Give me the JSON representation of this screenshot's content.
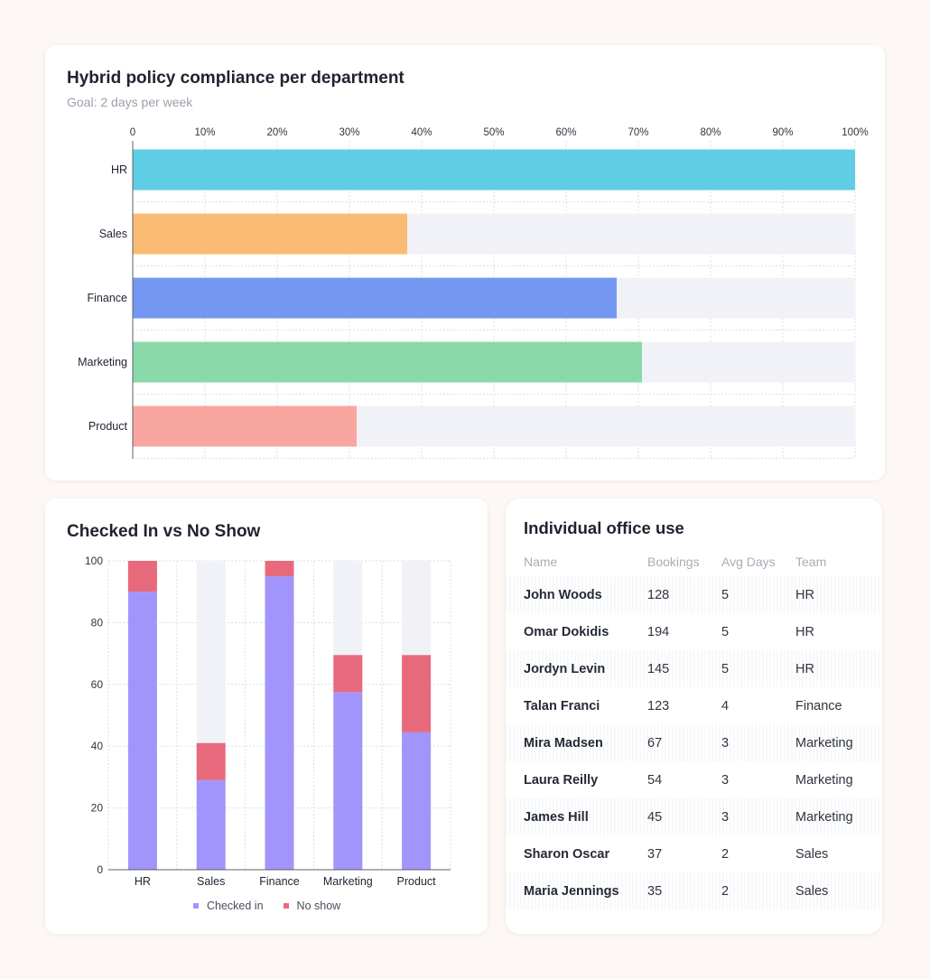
{
  "compliance": {
    "title": "Hybrid policy compliance per department",
    "subtitle": "Goal: 2 days per week"
  },
  "checkin": {
    "title": "Checked In vs No Show"
  },
  "table": {
    "title": "Individual office use",
    "headers": [
      "Name",
      "Bookings",
      "Avg Days",
      "Team"
    ],
    "rows": [
      [
        "John Woods",
        "128",
        "5",
        "HR"
      ],
      [
        "Omar Dokidis",
        "194",
        "5",
        "HR"
      ],
      [
        "Jordyn Levin",
        "145",
        "5",
        "HR"
      ],
      [
        "Talan Franci",
        "123",
        "4",
        "Finance"
      ],
      [
        "Mira Madsen",
        "67",
        "3",
        "Marketing"
      ],
      [
        "Laura Reilly",
        "54",
        "3",
        "Marketing"
      ],
      [
        "James Hill",
        "45",
        "3",
        "Marketing"
      ],
      [
        "Sharon Oscar",
        "37",
        "2",
        "Sales"
      ],
      [
        "Maria Jennings",
        "35",
        "2",
        "Sales"
      ]
    ]
  },
  "chart_data": [
    {
      "type": "bar",
      "orientation": "horizontal",
      "title": "Hybrid policy compliance per department",
      "subtitle": "Goal: 2 days per week",
      "categories": [
        "HR",
        "Sales",
        "Finance",
        "Marketing",
        "Product"
      ],
      "values": [
        100,
        38,
        67,
        70.5,
        31
      ],
      "colors": [
        "#5fcde4",
        "#f9bc72",
        "#7498f1",
        "#8ad9a8",
        "#f9a6a0"
      ],
      "track_color": "#f1f2f7",
      "xlim": [
        0,
        100
      ],
      "ticks": [
        "0",
        "10%",
        "20%",
        "30%",
        "40%",
        "50%",
        "60%",
        "70%",
        "80%",
        "90%",
        "100%"
      ],
      "grid": true
    },
    {
      "type": "bar",
      "stacked": true,
      "title": "Checked In vs No Show",
      "categories": [
        "HR",
        "Sales",
        "Finance",
        "Marketing",
        "Product"
      ],
      "series": [
        {
          "name": "Checked in",
          "color": "#a195fb",
          "values": [
            90,
            29,
            95,
            57.5,
            44.5
          ]
        },
        {
          "name": "No show",
          "color": "#e76a7c",
          "values": [
            10,
            12,
            5,
            12,
            25
          ]
        }
      ],
      "track_color": "#f1f2f7",
      "ylim": [
        0,
        100
      ],
      "yticks": [
        0,
        20,
        40,
        60,
        80,
        100
      ],
      "grid": true,
      "legend": "bottom"
    }
  ]
}
